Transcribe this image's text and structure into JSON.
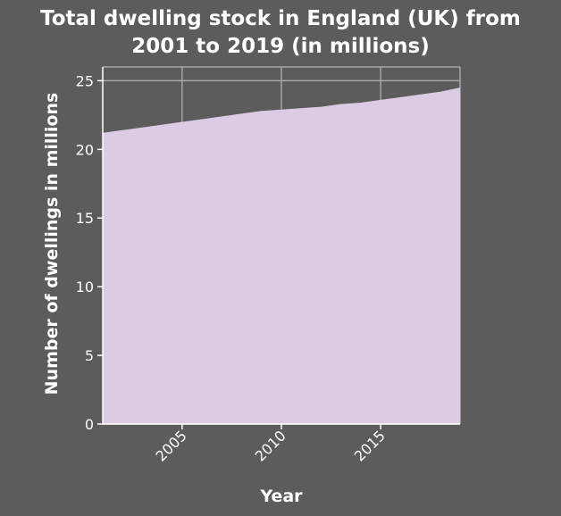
{
  "chart_data": {
    "type": "area",
    "title_lines": [
      "Total dwelling stock in England (UK) from",
      "2001 to 2019 (in millions)"
    ],
    "xlabel": "Year",
    "ylabel": "Number of dwellings in millions",
    "x": [
      2001,
      2002,
      2003,
      2004,
      2005,
      2006,
      2007,
      2008,
      2009,
      2010,
      2011,
      2012,
      2013,
      2014,
      2015,
      2016,
      2017,
      2018,
      2019
    ],
    "series": [
      {
        "values": [
          21.2,
          21.4,
          21.6,
          21.8,
          22.0,
          22.2,
          22.4,
          22.6,
          22.8,
          22.9,
          23.0,
          23.1,
          23.3,
          23.4,
          23.6,
          23.8,
          24.0,
          24.2,
          24.5
        ]
      }
    ],
    "xlim": [
      2001,
      2019
    ],
    "ylim": [
      0,
      26
    ],
    "x_ticks": [
      "2005",
      "2010",
      "2015"
    ],
    "y_ticks": [
      "0",
      "5",
      "10",
      "15",
      "20",
      "25"
    ],
    "grid": true,
    "legend": "none",
    "colors": {
      "background": "#5c5c5c",
      "area_fill": "#dccbe4",
      "grid": "#a6a6a6",
      "axis": "#ffffff",
      "text": "#ffffff"
    }
  }
}
